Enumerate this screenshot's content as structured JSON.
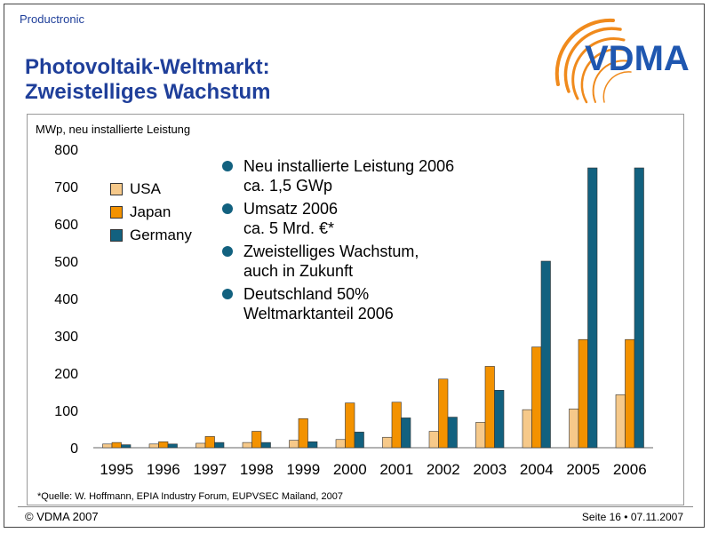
{
  "header": {
    "brand": "Productronic",
    "title_line1": "Photovoltaik-Weltmarkt:",
    "title_line2": "Zweistelliges Wachstum",
    "logo_text": "VDMA"
  },
  "footer": {
    "left": "© VDMA 2007",
    "right": "Seite 16 • 07.11.2007"
  },
  "colors": {
    "title": "#1f3f9a",
    "usa": "#f6c98a",
    "japan": "#f39200",
    "germany": "#12617f",
    "bullet": "#12617f",
    "logo_blue": "#1f57b0",
    "logo_orange": "#f08a1c"
  },
  "bullets": [
    {
      "line1": "Neu installierte Leistung 2006",
      "line2": "ca. 1,5 GWp"
    },
    {
      "line1": "Umsatz 2006",
      "line2": "ca. 5 Mrd. €*"
    },
    {
      "line1": "Zweistelliges Wachstum,",
      "line2": "auch in Zukunft"
    },
    {
      "line1": "Deutschland 50%",
      "line2": "Weltmarktanteil 2006"
    }
  ],
  "footnote": "*Quelle: W. Hoffmann, EPIA Industry Forum, EUPVSEC Mailand, 2007",
  "chart_data": {
    "type": "bar",
    "title": "",
    "ylabel": "MWp, neu installierte Leistung",
    "xlabel": "",
    "ylim": [
      0,
      800
    ],
    "yticks": [
      0,
      100,
      200,
      300,
      400,
      500,
      600,
      700,
      800
    ],
    "grid": false,
    "legend_position": "top-left",
    "categories": [
      "1995",
      "1996",
      "1997",
      "1998",
      "1999",
      "2000",
      "2001",
      "2002",
      "2003",
      "2004",
      "2005",
      "2006"
    ],
    "series": [
      {
        "name": "USA",
        "values": [
          10,
          10,
          12,
          14,
          20,
          22,
          28,
          44,
          68,
          102,
          104,
          142
        ],
        "color": "#f6c98a"
      },
      {
        "name": "Japan",
        "values": [
          14,
          16,
          30,
          44,
          78,
          120,
          122,
          184,
          218,
          270,
          290,
          290
        ],
        "color": "#f39200"
      },
      {
        "name": "Germany",
        "values": [
          8,
          10,
          14,
          14,
          16,
          42,
          80,
          82,
          154,
          500,
          750,
          750
        ],
        "color": "#12617f"
      }
    ]
  }
}
